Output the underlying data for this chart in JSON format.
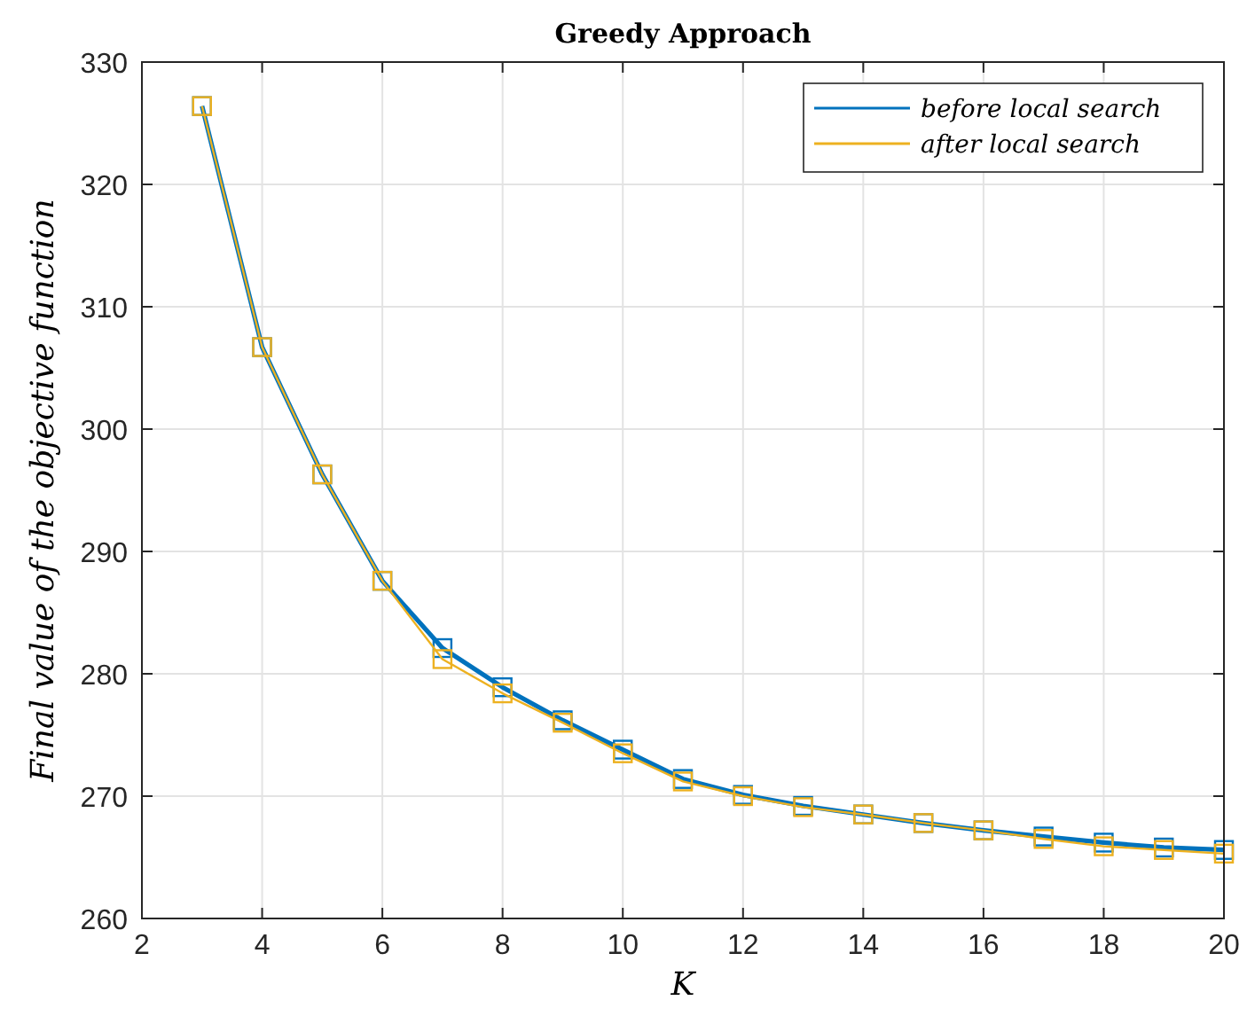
{
  "chart_data": {
    "type": "line",
    "title": "Greedy Approach",
    "xlabel": "K",
    "ylabel": "Final value of the objective function",
    "x": [
      3,
      4,
      5,
      6,
      7,
      8,
      9,
      10,
      11,
      12,
      13,
      14,
      15,
      16,
      17,
      18,
      19,
      20
    ],
    "series": [
      {
        "name": "before local search",
        "color": "#0072bd",
        "values": [
          326.4,
          306.7,
          296.3,
          287.6,
          282.1,
          278.9,
          276.2,
          273.8,
          271.4,
          270.1,
          269.2,
          268.5,
          267.8,
          267.2,
          266.7,
          266.2,
          265.8,
          265.6
        ]
      },
      {
        "name": "after local search",
        "color": "#edb120",
        "values": [
          326.4,
          306.7,
          296.3,
          287.6,
          281.2,
          278.4,
          276.0,
          273.5,
          271.2,
          270.0,
          269.1,
          268.5,
          267.8,
          267.2,
          266.5,
          265.9,
          265.6,
          265.3
        ]
      }
    ],
    "xlim": [
      2,
      20
    ],
    "xticks": [
      2,
      4,
      6,
      8,
      10,
      12,
      14,
      16,
      18,
      20
    ],
    "ylim": [
      260,
      330
    ],
    "yticks": [
      260,
      270,
      280,
      290,
      300,
      310,
      320,
      330
    ],
    "grid": true,
    "legend": "top right",
    "marker": "square",
    "line_style": "solid"
  }
}
